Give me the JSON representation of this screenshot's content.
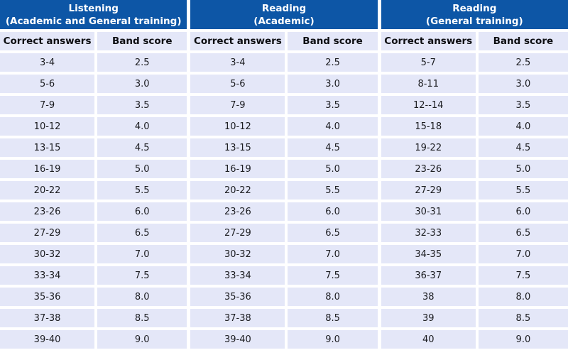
{
  "colors": {
    "header_bg": "#0d56a6",
    "header_text": "#ffffff",
    "cell_bg": "#e4e7f8",
    "cell_text": "#1b1c20"
  },
  "chart_data": [
    {
      "type": "table",
      "title": "Listening (Academic and General training)",
      "header": {
        "line1": "Listening",
        "line2": "(Academic and General training)"
      },
      "columns": [
        "Correct answers",
        "Band score"
      ],
      "rows": [
        [
          "3-4",
          "2.5"
        ],
        [
          "5-6",
          "3.0"
        ],
        [
          "7-9",
          "3.5"
        ],
        [
          "10-12",
          "4.0"
        ],
        [
          "13-15",
          "4.5"
        ],
        [
          "16-19",
          "5.0"
        ],
        [
          "20-22",
          "5.5"
        ],
        [
          "23-26",
          "6.0"
        ],
        [
          "27-29",
          "6.5"
        ],
        [
          "30-32",
          "7.0"
        ],
        [
          "33-34",
          "7.5"
        ],
        [
          "35-36",
          "8.0"
        ],
        [
          "37-38",
          "8.5"
        ],
        [
          "39-40",
          "9.0"
        ]
      ]
    },
    {
      "type": "table",
      "title": "Reading (Academic)",
      "header": {
        "line1": "Reading",
        "line2": "(Academic)"
      },
      "columns": [
        "Correct answers",
        "Band score"
      ],
      "rows": [
        [
          "3-4",
          "2.5"
        ],
        [
          "5-6",
          "3.0"
        ],
        [
          "7-9",
          "3.5"
        ],
        [
          "10-12",
          "4.0"
        ],
        [
          "13-15",
          "4.5"
        ],
        [
          "16-19",
          "5.0"
        ],
        [
          "20-22",
          "5.5"
        ],
        [
          "23-26",
          "6.0"
        ],
        [
          "27-29",
          "6.5"
        ],
        [
          "30-32",
          "7.0"
        ],
        [
          "33-34",
          "7.5"
        ],
        [
          "35-36",
          "8.0"
        ],
        [
          "37-38",
          "8.5"
        ],
        [
          "39-40",
          "9.0"
        ]
      ]
    },
    {
      "type": "table",
      "title": "Reading (General training)",
      "header": {
        "line1": "Reading",
        "line2": "(General training)"
      },
      "columns": [
        "Correct answers",
        "Band score"
      ],
      "rows": [
        [
          "5-7",
          "2.5"
        ],
        [
          "8-11",
          "3.0"
        ],
        [
          "12--14",
          "3.5"
        ],
        [
          "15-18",
          "4.0"
        ],
        [
          "19-22",
          "4.5"
        ],
        [
          "23-26",
          "5.0"
        ],
        [
          "27-29",
          "5.5"
        ],
        [
          "30-31",
          "6.0"
        ],
        [
          "32-33",
          "6.5"
        ],
        [
          "34-35",
          "7.0"
        ],
        [
          "36-37",
          "7.5"
        ],
        [
          "38",
          "8.0"
        ],
        [
          "39",
          "8.5"
        ],
        [
          "40",
          "9.0"
        ]
      ]
    }
  ]
}
